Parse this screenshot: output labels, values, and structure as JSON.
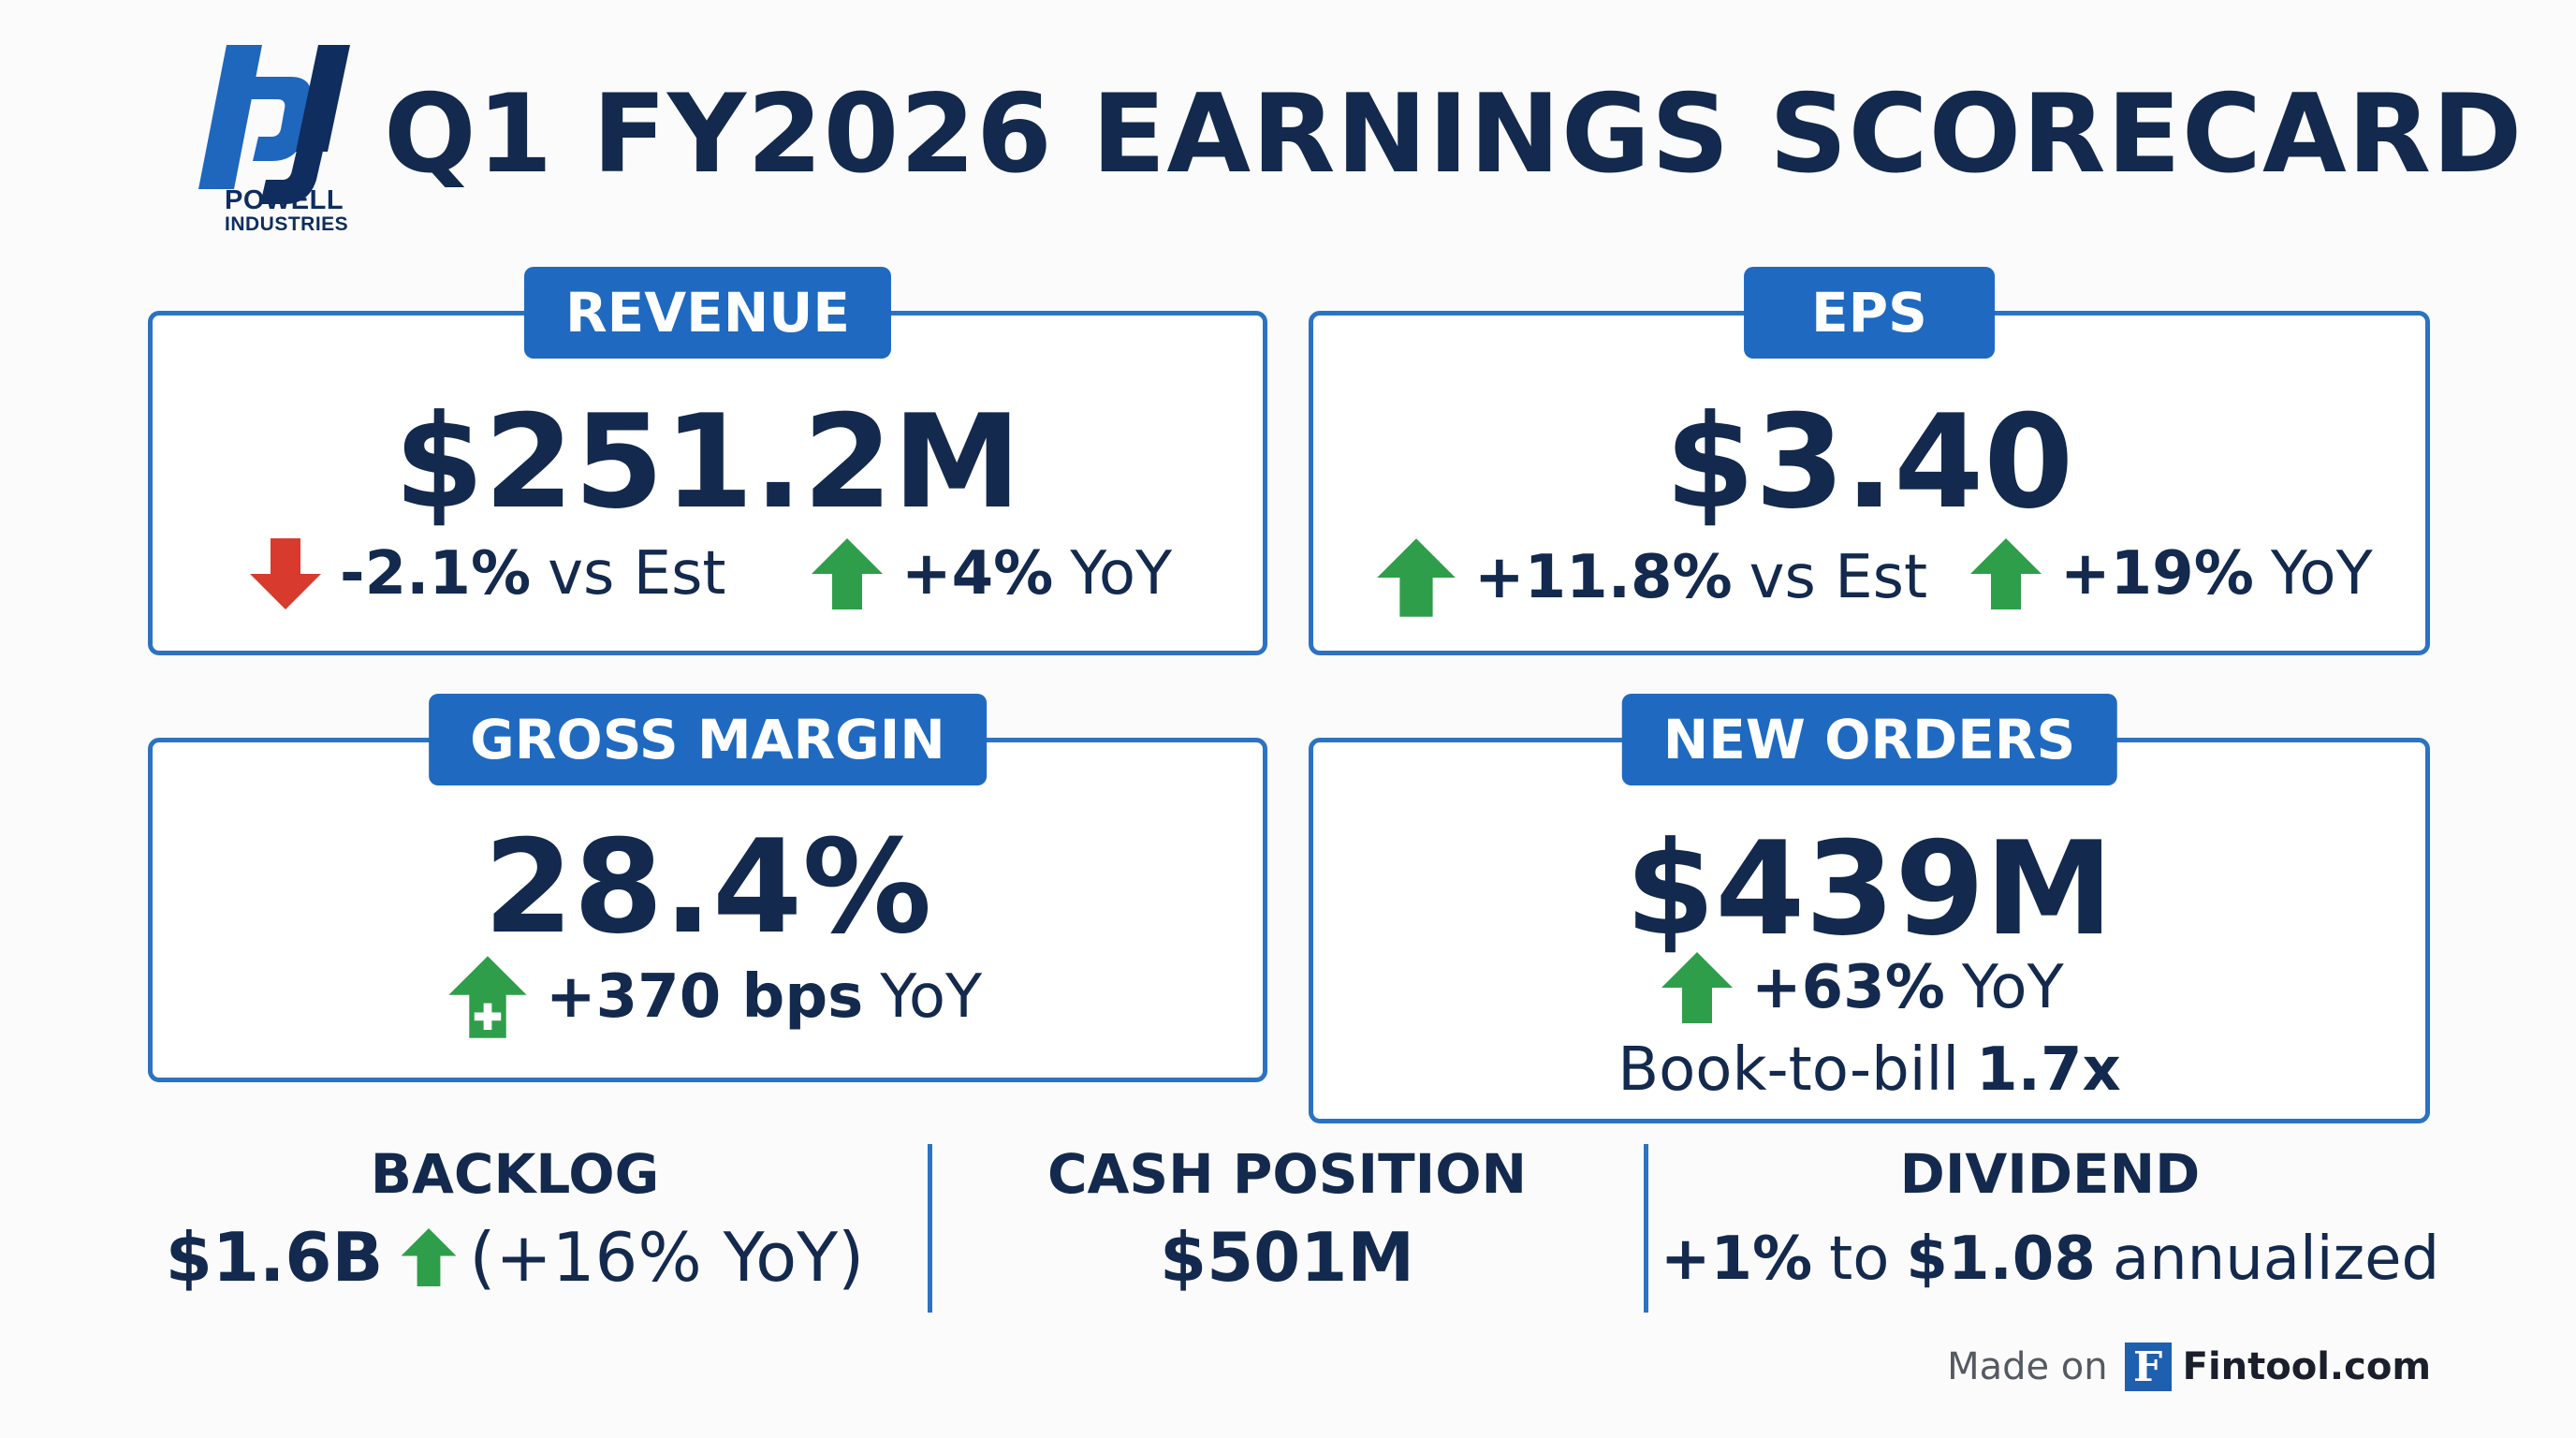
{
  "header": {
    "title": "Q1 FY2026 EARNINGS SCORECARD",
    "logo": {
      "line1": "POWELL",
      "line2": "INDUSTRIES"
    }
  },
  "cards": {
    "revenue": {
      "label": "REVENUE",
      "value": "$251.2M",
      "stat1": {
        "direction": "down",
        "bold": "-2.1%",
        "rest": "vs Est"
      },
      "stat2": {
        "direction": "up",
        "bold": "+4%",
        "rest": "YoY"
      }
    },
    "eps": {
      "label": "EPS",
      "value": "$3.40",
      "stat1": {
        "direction": "up",
        "bold": "+11.8%",
        "rest": "vs Est"
      },
      "stat2": {
        "direction": "up",
        "bold": "+19%",
        "rest": "YoY"
      }
    },
    "gross_margin": {
      "label": "GROSS MARGIN",
      "value": "28.4%",
      "stat1": {
        "direction": "up",
        "bold": "+370 bps",
        "rest": "YoY"
      }
    },
    "new_orders": {
      "label": "NEW ORDERS",
      "value": "$439M",
      "stat1": {
        "direction": "up",
        "bold": "+63%",
        "rest": "YoY"
      },
      "book_to_bill": {
        "label": "Book-to-bill",
        "value": "1.7x"
      }
    }
  },
  "bottom": {
    "backlog": {
      "title": "BACKLOG",
      "value": "$1.6B",
      "change": "(+16% YoY)"
    },
    "cash": {
      "title": "CASH POSITION",
      "value": "$501M"
    },
    "dividend": {
      "title": "DIVIDEND",
      "change": "+1%",
      "to": "to",
      "amount": "$1.08",
      "suffix": "annualized"
    }
  },
  "footer": {
    "made_on": "Made on",
    "badge": "F",
    "brand": "Fintool.com"
  },
  "colors": {
    "navy": "#13294d",
    "blue": "#1f6ac0",
    "up": "#2f9e4b",
    "down": "#d83a2e"
  },
  "icons": {
    "up": "arrow-up-icon",
    "down": "arrow-down-icon"
  }
}
